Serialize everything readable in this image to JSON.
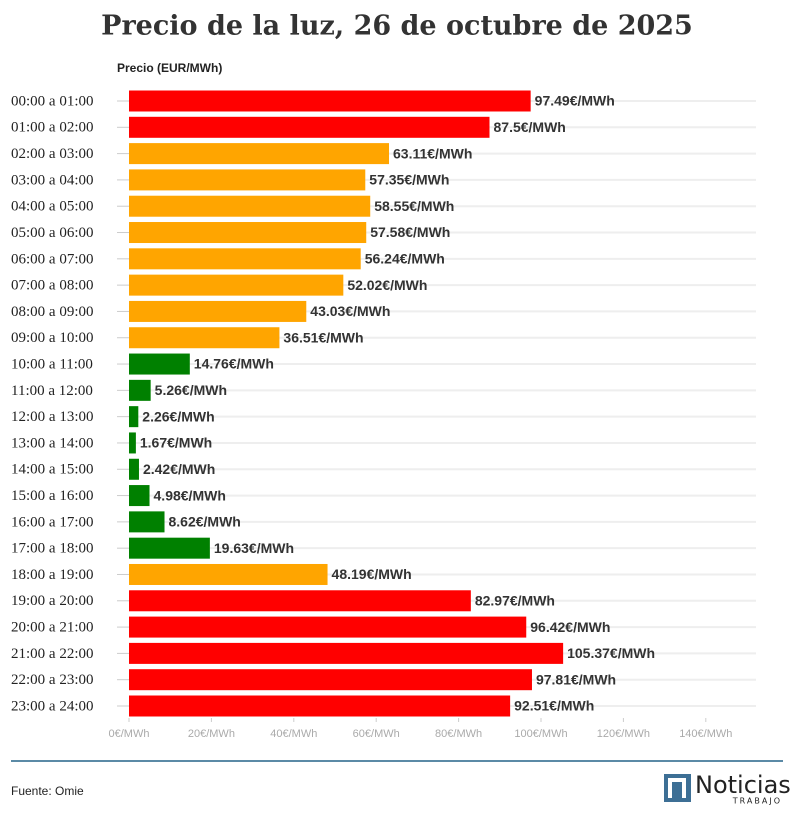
{
  "chart_data": {
    "type": "hbar",
    "title": "Precio de la luz, 26 de octubre de 2025",
    "axis_title": "Precio (EUR/MWh)",
    "categories": [
      "00:00 a 01:00",
      "01:00 a 02:00",
      "02:00 a 03:00",
      "03:00 a 04:00",
      "04:00 a 05:00",
      "05:00 a 06:00",
      "06:00 a 07:00",
      "07:00 a 08:00",
      "08:00 a 09:00",
      "09:00 a 10:00",
      "10:00 a 11:00",
      "11:00 a 12:00",
      "12:00 a 13:00",
      "13:00 a 14:00",
      "14:00 a 15:00",
      "15:00 a 16:00",
      "16:00 a 17:00",
      "17:00 a 18:00",
      "18:00 a 19:00",
      "19:00 a 20:00",
      "20:00 a 21:00",
      "21:00 a 22:00",
      "22:00 a 23:00",
      "23:00 a 24:00"
    ],
    "values": [
      97.49,
      87.5,
      63.11,
      57.35,
      58.55,
      57.58,
      56.24,
      52.02,
      43.03,
      36.51,
      14.76,
      5.26,
      2.26,
      1.67,
      2.42,
      4.98,
      8.62,
      19.63,
      48.19,
      82.97,
      96.42,
      105.37,
      97.81,
      92.51
    ],
    "value_labels": [
      "97.49€/MWh",
      "87.5€/MWh",
      "63.11€/MWh",
      "57.35€/MWh",
      "58.55€/MWh",
      "57.58€/MWh",
      "56.24€/MWh",
      "52.02€/MWh",
      "43.03€/MWh",
      "36.51€/MWh",
      "14.76€/MWh",
      "5.26€/MWh",
      "2.26€/MWh",
      "1.67€/MWh",
      "2.42€/MWh",
      "4.98€/MWh",
      "8.62€/MWh",
      "19.63€/MWh",
      "48.19€/MWh",
      "82.97€/MWh",
      "96.42€/MWh",
      "105.37€/MWh",
      "97.81€/MWh",
      "92.51€/MWh"
    ],
    "colors": [
      "#ff0000",
      "#ff0000",
      "#ffa500",
      "#ffa500",
      "#ffa500",
      "#ffa500",
      "#ffa500",
      "#ffa500",
      "#ffa500",
      "#ffa500",
      "#008000",
      "#008000",
      "#008000",
      "#008000",
      "#008000",
      "#008000",
      "#008000",
      "#008000",
      "#ffa500",
      "#ff0000",
      "#ff0000",
      "#ff0000",
      "#ff0000",
      "#ff0000"
    ],
    "xlim": [
      0,
      150
    ],
    "xticks": [
      {
        "value": 0,
        "label": "0€/MWh"
      },
      {
        "value": 20,
        "label": "20€/MWh"
      },
      {
        "value": 40,
        "label": "40€/MWh"
      },
      {
        "value": 60,
        "label": "60€/MWh"
      },
      {
        "value": 80,
        "label": "80€/MWh"
      },
      {
        "value": 100,
        "label": "100€/MWh"
      },
      {
        "value": 120,
        "label": "120€/MWh"
      },
      {
        "value": 140,
        "label": "140€/MWh"
      }
    ],
    "source": "Fuente: Omie",
    "logo": {
      "text": "Noticias",
      "subtext": "TRABAJO"
    }
  }
}
